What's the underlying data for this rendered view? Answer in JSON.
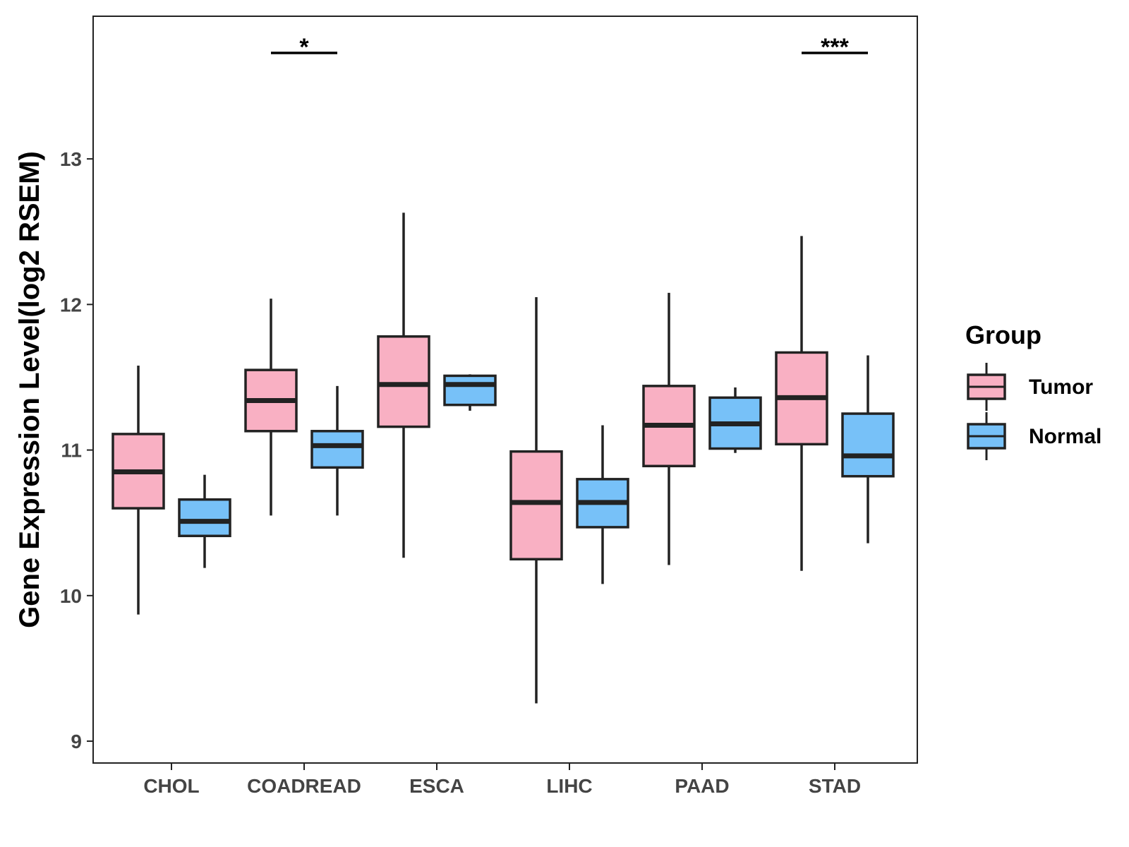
{
  "chart_data": {
    "type": "boxplot",
    "title": "",
    "xlabel": "",
    "ylabel": "Gene Expression Level(log2 RSEM)",
    "ylim": [
      8.85,
      13.98
    ],
    "yticks": [
      9,
      10,
      11,
      12,
      13
    ],
    "ytick_labels": [
      "9",
      "10",
      "11",
      "12",
      "13"
    ],
    "categories": [
      "CHOL",
      "COADREAD",
      "ESCA",
      "LIHC",
      "PAAD",
      "STAD"
    ],
    "legend": {
      "title": "Group",
      "position": "right",
      "items": [
        {
          "label": "Tumor",
          "color": "#F9B0C3"
        },
        {
          "label": "Normal",
          "color": "#77C1F8"
        }
      ]
    },
    "series": [
      {
        "name": "Tumor",
        "color": "#F9B0C3",
        "boxes": [
          {
            "min": 9.87,
            "q1": 10.6,
            "median": 10.85,
            "q3": 11.11,
            "max": 11.58
          },
          {
            "min": 10.55,
            "q1": 11.13,
            "median": 11.34,
            "q3": 11.55,
            "max": 12.04
          },
          {
            "min": 10.26,
            "q1": 11.16,
            "median": 11.45,
            "q3": 11.78,
            "max": 12.63
          },
          {
            "min": 9.26,
            "q1": 10.25,
            "median": 10.64,
            "q3": 10.99,
            "max": 12.05
          },
          {
            "min": 10.21,
            "q1": 10.89,
            "median": 11.17,
            "q3": 11.44,
            "max": 12.08
          },
          {
            "min": 10.17,
            "q1": 11.04,
            "median": 11.36,
            "q3": 11.67,
            "max": 12.47
          }
        ]
      },
      {
        "name": "Normal",
        "color": "#77C1F8",
        "boxes": [
          {
            "min": 10.19,
            "q1": 10.41,
            "median": 10.51,
            "q3": 10.66,
            "max": 10.83
          },
          {
            "min": 10.55,
            "q1": 10.88,
            "median": 11.03,
            "q3": 11.13,
            "max": 11.44
          },
          {
            "min": 11.27,
            "q1": 11.31,
            "median": 11.45,
            "q3": 11.51,
            "max": 11.52
          },
          {
            "min": 10.08,
            "q1": 10.47,
            "median": 10.64,
            "q3": 10.8,
            "max": 11.17
          },
          {
            "min": 10.98,
            "q1": 11.01,
            "median": 11.18,
            "q3": 11.36,
            "max": 11.43
          },
          {
            "min": 10.36,
            "q1": 10.82,
            "median": 10.96,
            "q3": 11.25,
            "max": 11.65
          }
        ]
      }
    ],
    "significance": [
      {
        "category": "COADREAD",
        "label": "*"
      },
      {
        "category": "STAD",
        "label": "***"
      }
    ]
  }
}
